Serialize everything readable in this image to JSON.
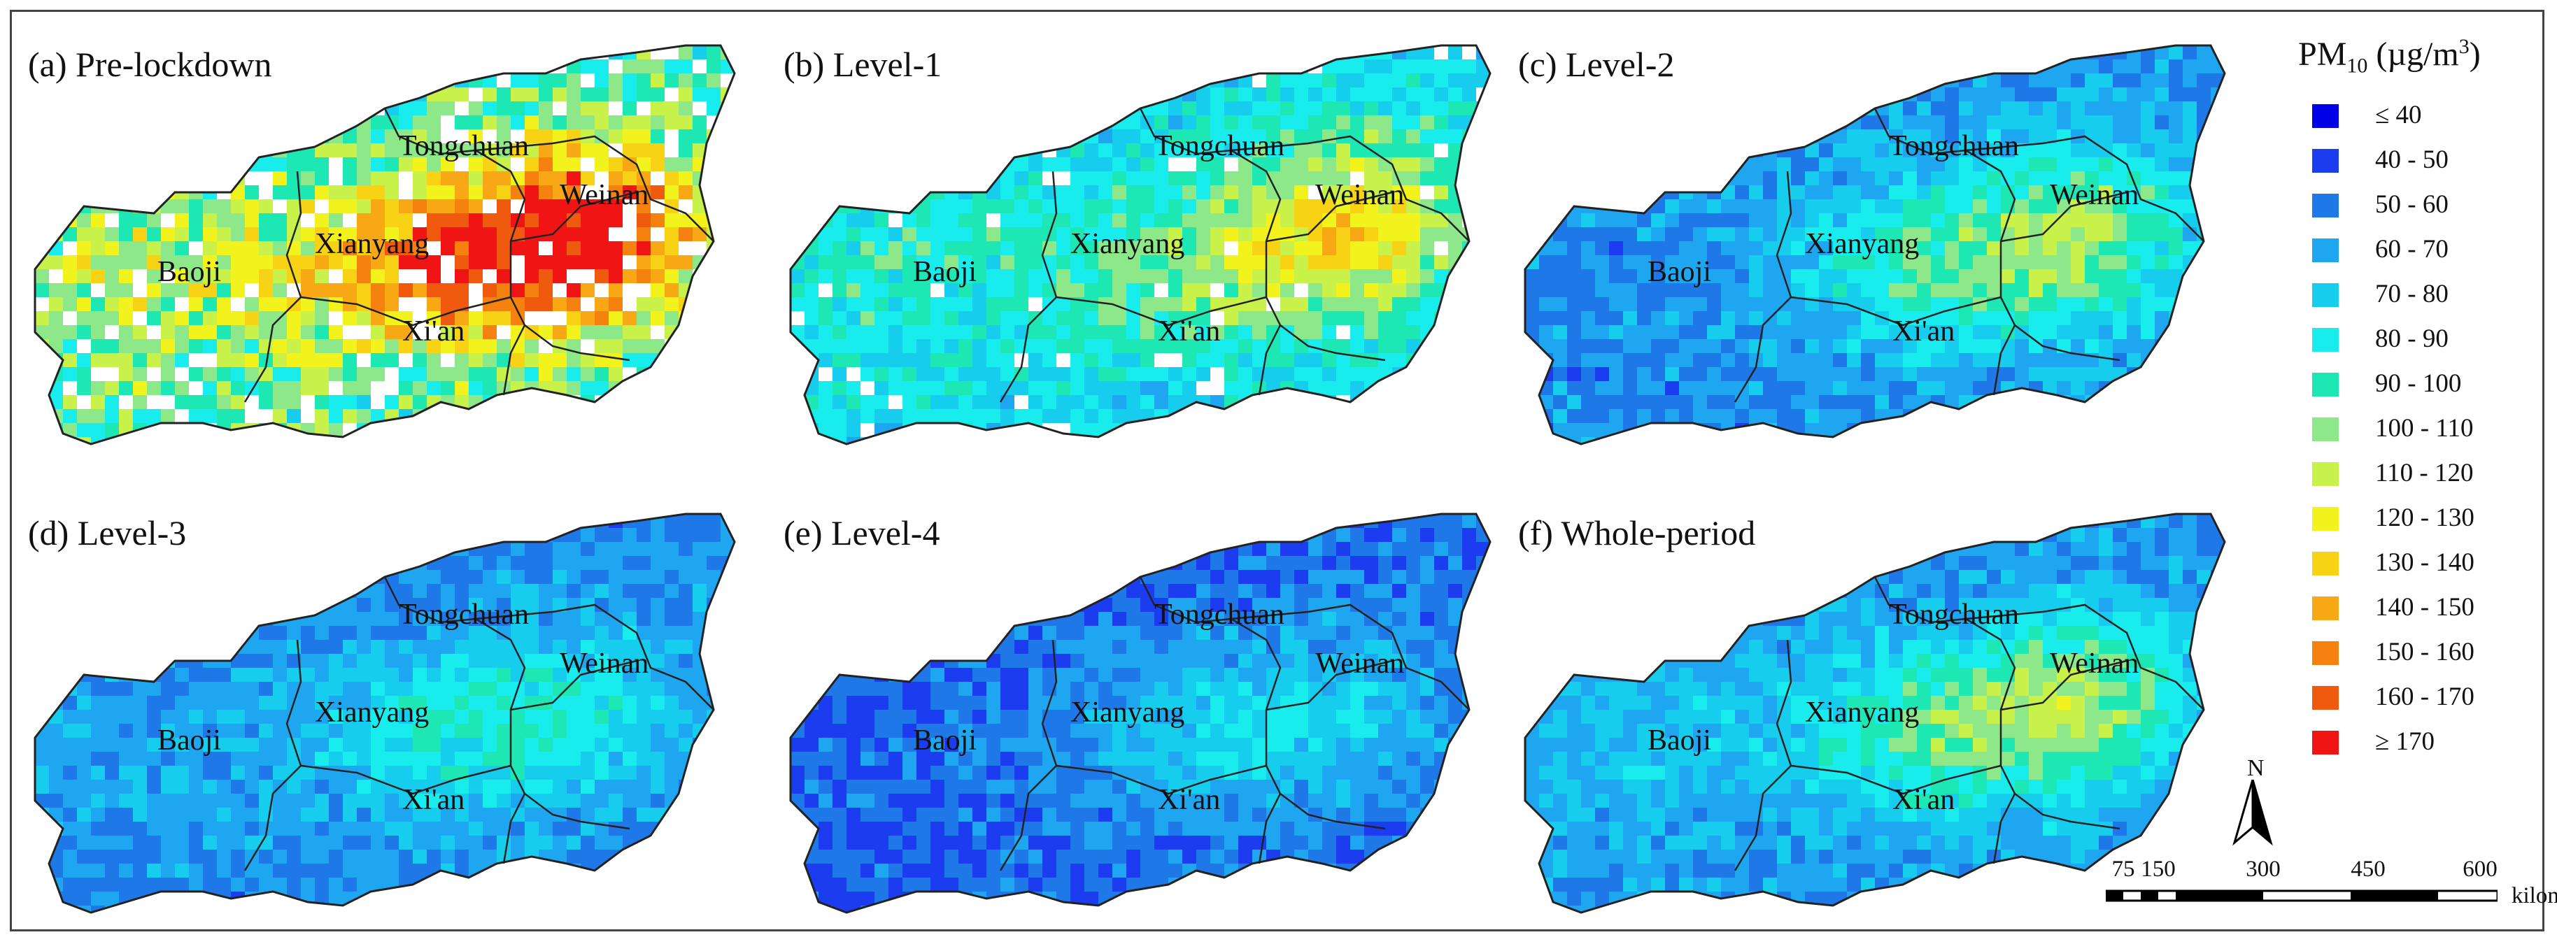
{
  "figure": {
    "panels": [
      {
        "id": "a",
        "title": "(a) Pre-lockdown",
        "scheme": "pre"
      },
      {
        "id": "b",
        "title": "(b) Level-1",
        "scheme": "l1"
      },
      {
        "id": "c",
        "title": "(c) Level-2",
        "scheme": "l2"
      },
      {
        "id": "d",
        "title": "(d) Level-3",
        "scheme": "l3"
      },
      {
        "id": "e",
        "title": "(e) Level-4",
        "scheme": "l4"
      },
      {
        "id": "f",
        "title": "(f) Whole-period",
        "scheme": "whole"
      }
    ],
    "cities": [
      "Tongchuan",
      "Weinan",
      "Xianyang",
      "Baoji",
      "Xi'an"
    ],
    "north_label": "N"
  },
  "legend": {
    "title_prefix": "PM",
    "title_sub": "10",
    "title_unit_open": " (µg/m",
    "title_unit_sup": "3",
    "title_unit_close": ")",
    "classes": [
      {
        "label": "≤ 40",
        "color": "#0000e6"
      },
      {
        "label": "40 - 50",
        "color": "#1c3cf0"
      },
      {
        "label": "50 - 60",
        "color": "#1f78e8"
      },
      {
        "label": "60 - 70",
        "color": "#1ea6f0"
      },
      {
        "label": "70 - 80",
        "color": "#17cdee"
      },
      {
        "label": "80 - 90",
        "color": "#18ecec"
      },
      {
        "label": "90 - 100",
        "color": "#1de8b4"
      },
      {
        "label": "100 - 110",
        "color": "#8de88a"
      },
      {
        "label": "110 - 120",
        "color": "#c8f24a"
      },
      {
        "label": "120 - 130",
        "color": "#f2f21c"
      },
      {
        "label": "130 - 140",
        "color": "#f8d214"
      },
      {
        "label": "140 - 150",
        "color": "#f8a814"
      },
      {
        "label": "150 - 160",
        "color": "#f5820f"
      },
      {
        "label": "160 - 170",
        "color": "#f05a0f"
      },
      {
        "label": "≥ 170",
        "color": "#f01414"
      }
    ]
  },
  "scale": {
    "ticks": [
      "75",
      "150",
      "300",
      "450",
      "600"
    ],
    "unit": "kilometers"
  }
}
